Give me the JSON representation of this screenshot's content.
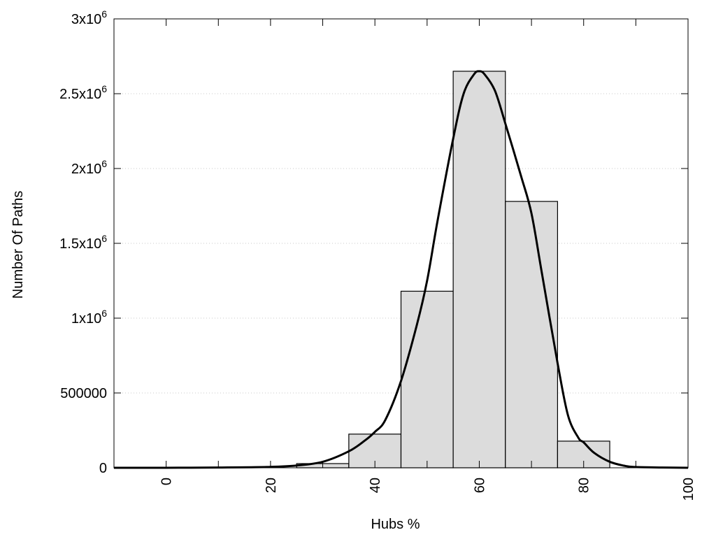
{
  "chart_data": {
    "type": "bar",
    "title": "",
    "xlabel": "Hubs %",
    "ylabel": "Number Of Paths",
    "xlim": [
      -10,
      100
    ],
    "ylim": [
      0,
      3000000
    ],
    "grid": "horizontal-dotted",
    "bins": [
      {
        "x0": 25,
        "x1": 35,
        "value": 28000
      },
      {
        "x0": 35,
        "x1": 45,
        "value": 225000
      },
      {
        "x0": 45,
        "x1": 55,
        "value": 1180000
      },
      {
        "x0": 55,
        "x1": 65,
        "value": 2650000
      },
      {
        "x0": 65,
        "x1": 75,
        "value": 1780000
      },
      {
        "x0": 75,
        "x1": 85,
        "value": 178000
      }
    ],
    "curve": {
      "x": [
        -10,
        0,
        10,
        20,
        25,
        30,
        35,
        38,
        40,
        42,
        45,
        48,
        50,
        52,
        55,
        57,
        59,
        60,
        61,
        63,
        65,
        68,
        70,
        72,
        75,
        77,
        79,
        80,
        82,
        85,
        88,
        90,
        95,
        100
      ],
      "y": [
        0,
        0,
        2000,
        6000,
        15000,
        40000,
        110000,
        180000,
        240000,
        320000,
        580000,
        950000,
        1250000,
        1650000,
        2200000,
        2500000,
        2630000,
        2650000,
        2630000,
        2520000,
        2300000,
        1950000,
        1700000,
        1300000,
        700000,
        350000,
        200000,
        170000,
        100000,
        40000,
        12000,
        5000,
        2000,
        0
      ]
    },
    "x_ticks": {
      "values": [
        0,
        20,
        40,
        60,
        80,
        100
      ],
      "labels": [
        "0",
        "20",
        "40",
        "60",
        "80",
        "100"
      ],
      "minor_values": [
        10,
        30,
        50,
        70,
        90
      ]
    },
    "y_ticks": {
      "values": [
        0,
        500000,
        1000000,
        1500000,
        2000000,
        2500000,
        3000000
      ],
      "labels": [
        {
          "mantissa": "0",
          "exp": ""
        },
        {
          "mantissa": "500000",
          "exp": ""
        },
        {
          "mantissa": "1x10",
          "exp": "6"
        },
        {
          "mantissa": "1.5x10",
          "exp": "6"
        },
        {
          "mantissa": "2x10",
          "exp": "6"
        },
        {
          "mantissa": "2.5x10",
          "exp": "6"
        },
        {
          "mantissa": "3x10",
          "exp": "6"
        }
      ]
    },
    "colors": {
      "bar_fill": "#dcdcdc",
      "bar_stroke": "#000000",
      "curve": "#000000",
      "grid": "#c8c8c8"
    }
  }
}
